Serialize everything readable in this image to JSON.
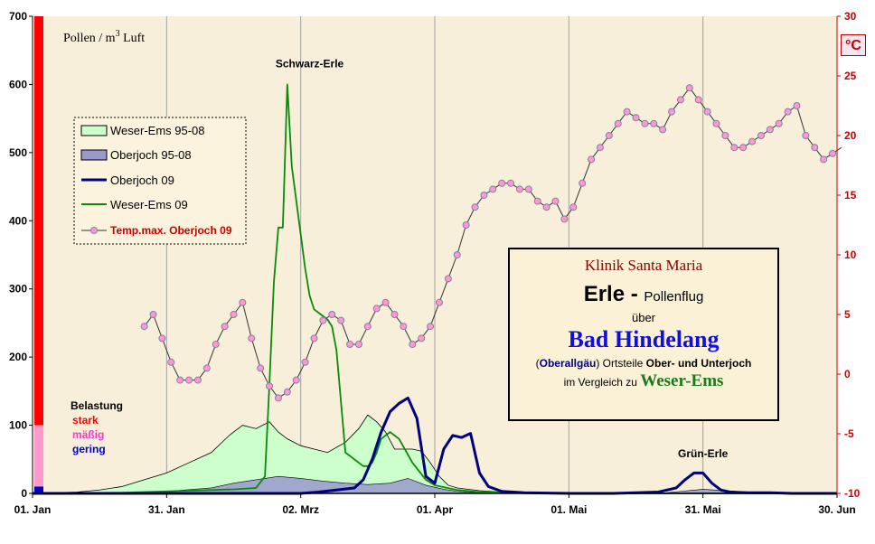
{
  "chart_data": {
    "type": "line",
    "ylabel_pollen": "Pollen / m³ Luft",
    "ylabel_pollen_main": "Pollen / m",
    "ylabel_pollen_sup": "3",
    "ylabel_pollen_tail": " Luft",
    "temp_unit_label": "°C",
    "x_ticks": [
      "01. Jan",
      "31. Jan",
      "02. Mrz",
      "01. Apr",
      "01. Mai",
      "31. Mai",
      "30. Jun"
    ],
    "x_tick_days": [
      0,
      30,
      60,
      90,
      120,
      150,
      180
    ],
    "xlim": [
      0,
      180
    ],
    "y_left_ticks": [
      0,
      100,
      200,
      300,
      400,
      500,
      600,
      700
    ],
    "ylim_left": [
      0,
      700
    ],
    "y_right_ticks": [
      -10,
      -5,
      0,
      5,
      10,
      15,
      20,
      25,
      30
    ],
    "ylim_right": [
      -10,
      30
    ],
    "annotations": [
      {
        "text": "Schwarz-Erle",
        "x": 62,
        "y": 625
      },
      {
        "text": "Grün-Erle",
        "x": 150,
        "y": 53
      }
    ],
    "legend": [
      {
        "label": "Weser-Ems 95-08",
        "kind": "area",
        "color": "#ccffcc"
      },
      {
        "label": "Oberjoch 95-08",
        "kind": "area",
        "color": "#9999cc"
      },
      {
        "label": "Oberjoch 09",
        "kind": "line",
        "color": "#000080"
      },
      {
        "label": "Weser-Ems 09",
        "kind": "line",
        "color": "#0a8a0a"
      },
      {
        "label": "Temp.max. Oberjoch 09",
        "kind": "marker-line",
        "color": "#cc0000"
      }
    ],
    "belastung": {
      "title": "Belastung",
      "levels": [
        {
          "label": "stark",
          "color": "#ff0000",
          "from": 100,
          "to": 700
        },
        {
          "label": "mäßig",
          "color": "#ff99cc",
          "from": 10,
          "to": 100
        },
        {
          "label": "gering",
          "color": "#0000cc",
          "from": 0,
          "to": 10
        }
      ]
    },
    "series": [
      {
        "name": "Weser-Ems 95-08",
        "type": "area",
        "x": [
          0,
          10,
          15,
          20,
          25,
          30,
          35,
          40,
          44,
          47,
          50,
          53,
          55,
          57,
          60,
          63,
          66,
          70,
          73,
          75,
          77,
          79,
          81,
          83,
          85,
          87,
          89,
          91,
          93,
          95,
          100,
          105,
          110,
          115,
          120,
          125,
          130,
          140,
          150,
          160,
          170,
          180
        ],
        "values": [
          0,
          2,
          5,
          10,
          20,
          30,
          45,
          60,
          85,
          100,
          95,
          105,
          90,
          80,
          70,
          65,
          60,
          75,
          95,
          115,
          105,
          90,
          65,
          65,
          65,
          62,
          45,
          25,
          12,
          8,
          4,
          2,
          1,
          1,
          0,
          0,
          0,
          0,
          0,
          0,
          0,
          0
        ]
      },
      {
        "name": "Oberjoch 95-08",
        "type": "area",
        "x": [
          0,
          20,
          30,
          40,
          45,
          50,
          55,
          60,
          65,
          70,
          75,
          80,
          84,
          88,
          92,
          95,
          100,
          120,
          140,
          145,
          150,
          155,
          160,
          170,
          180
        ],
        "values": [
          0,
          1,
          3,
          8,
          15,
          20,
          25,
          22,
          18,
          15,
          13,
          15,
          22,
          12,
          6,
          3,
          1,
          0,
          0,
          3,
          6,
          4,
          2,
          1,
          0
        ]
      },
      {
        "name": "Weser-Ems 09",
        "type": "line",
        "x": [
          0,
          20,
          30,
          40,
          45,
          50,
          52,
          53,
          54,
          55,
          56,
          57,
          58,
          59,
          60,
          61,
          62,
          63,
          64,
          65,
          66,
          67,
          68,
          70,
          72,
          73,
          74,
          75,
          76,
          77,
          78,
          80,
          82,
          85,
          88,
          90,
          95,
          100,
          110,
          120,
          130,
          140,
          150,
          160,
          170,
          180
        ],
        "values": [
          0,
          1,
          3,
          5,
          6,
          8,
          25,
          160,
          310,
          390,
          390,
          600,
          480,
          430,
          380,
          330,
          290,
          270,
          265,
          260,
          255,
          245,
          210,
          60,
          50,
          45,
          40,
          40,
          45,
          60,
          80,
          90,
          80,
          45,
          20,
          12,
          5,
          2,
          1,
          0,
          0,
          0,
          0,
          0,
          0,
          0
        ]
      },
      {
        "name": "Oberjoch 09",
        "type": "line",
        "x": [
          0,
          60,
          64,
          68,
          72,
          74,
          76,
          78,
          80,
          82,
          84,
          86,
          88,
          90,
          92,
          94,
          96,
          98,
          100,
          102,
          105,
          110,
          120,
          130,
          140,
          144,
          146,
          148,
          150,
          152,
          154,
          156,
          160,
          165,
          170,
          180
        ],
        "values": [
          0,
          0,
          2,
          5,
          8,
          20,
          50,
          90,
          120,
          132,
          140,
          110,
          25,
          15,
          65,
          85,
          82,
          88,
          30,
          10,
          3,
          1,
          0,
          0,
          2,
          8,
          20,
          30,
          30,
          15,
          5,
          2,
          1,
          1,
          0,
          0
        ]
      },
      {
        "name": "Temp.max. Oberjoch 09",
        "type": "line-marker",
        "axis": "right",
        "x": [
          25,
          27,
          29,
          31,
          33,
          35,
          37,
          39,
          41,
          43,
          45,
          47,
          49,
          51,
          53,
          55,
          57,
          59,
          61,
          63,
          65,
          67,
          69,
          71,
          73,
          75,
          77,
          79,
          81,
          83,
          85,
          87,
          89,
          91,
          93,
          95,
          97,
          99,
          101,
          103,
          105,
          107,
          109,
          111,
          113,
          115,
          117,
          119,
          121,
          123,
          125,
          127,
          129,
          131,
          133,
          135,
          137,
          139,
          141,
          143,
          145,
          147,
          149,
          151,
          153,
          155,
          157,
          159,
          161,
          163,
          165,
          167,
          169,
          171,
          173,
          175,
          177,
          179,
          181
        ],
        "values": [
          4,
          5,
          3,
          1,
          -0.5,
          -0.5,
          -0.5,
          0.5,
          2.5,
          4,
          5,
          6,
          3,
          0.5,
          -1,
          -2,
          -1.5,
          -0.5,
          1,
          3,
          4.5,
          5,
          4.5,
          2.5,
          2.5,
          4,
          5.5,
          6,
          5,
          4,
          2.5,
          3,
          4,
          6,
          8,
          10,
          12.5,
          14,
          15,
          15.5,
          16,
          16,
          15.5,
          15.5,
          14.5,
          14,
          14.5,
          13,
          14,
          16,
          18,
          19,
          20,
          21,
          22,
          21.5,
          21,
          21,
          20.5,
          22,
          23,
          24,
          23,
          22,
          21,
          20,
          19,
          19,
          19.5,
          20,
          20.5,
          21,
          22,
          22.5,
          20,
          19,
          18,
          18.5,
          19
        ]
      }
    ]
  },
  "title_box": {
    "line1": "Klinik Santa Maria",
    "line2_big": "Erle - ",
    "line2_small": "Pollenflug",
    "line3": "über",
    "line4": "Bad Hindelang",
    "line5_paren_open": "(",
    "line5_bold": "Oberallgäu",
    "line5_mid": ") Ortsteile ",
    "line5_bold2": "Ober- und Unterjoch",
    "line6_pre": "im Vergleich zu ",
    "line6_bold": "Weser-Ems"
  },
  "colors": {
    "plot_bg": "#f7efd9",
    "grid": "#a0a0a0",
    "right_axis": "#cc0000"
  }
}
